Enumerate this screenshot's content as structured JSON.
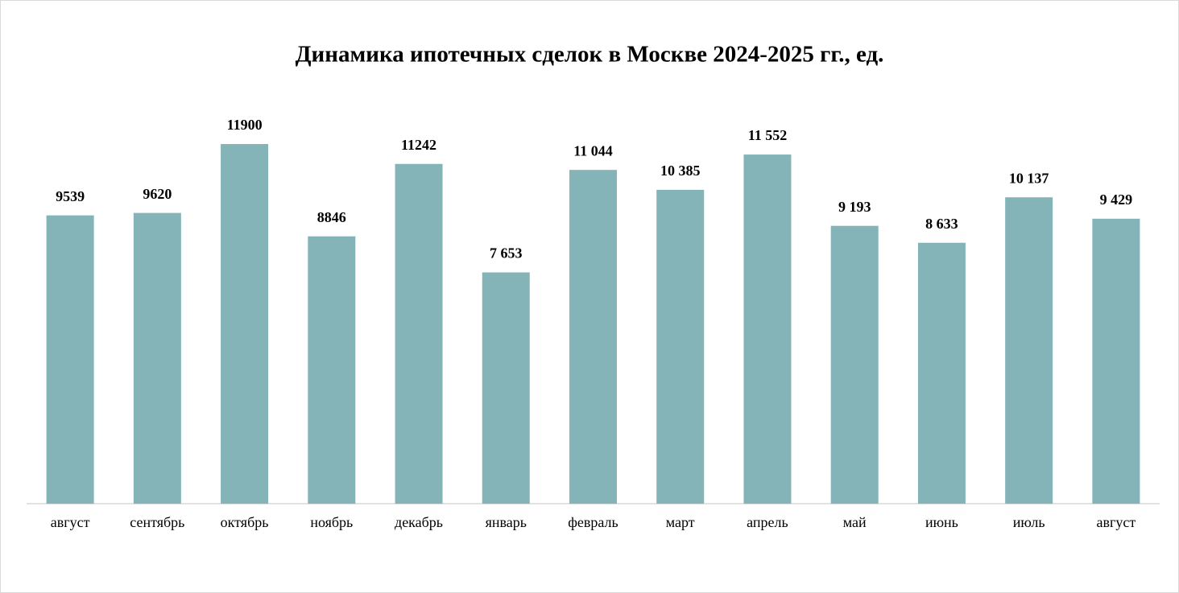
{
  "chart_data": {
    "type": "bar",
    "title": "Динамика ипотечных сделок в Москве 2024-2025 гг., ед.",
    "categories": [
      "август",
      "сентябрь",
      "октябрь",
      "ноябрь",
      "декабрь",
      "январь",
      "февраль",
      "март",
      "апрель",
      "май",
      "июнь",
      "июль",
      "август"
    ],
    "values": [
      9539,
      9620,
      11900,
      8846,
      11242,
      7653,
      11044,
      10385,
      11552,
      9193,
      8633,
      10137,
      9429
    ],
    "value_labels": [
      "9539",
      "9620",
      "11900",
      "8846",
      "11242",
      "7 653",
      "11 044",
      "10 385",
      "11 552",
      "9 193",
      "8 633",
      "10 137",
      "9 429"
    ],
    "color": "#84b4b8"
  }
}
